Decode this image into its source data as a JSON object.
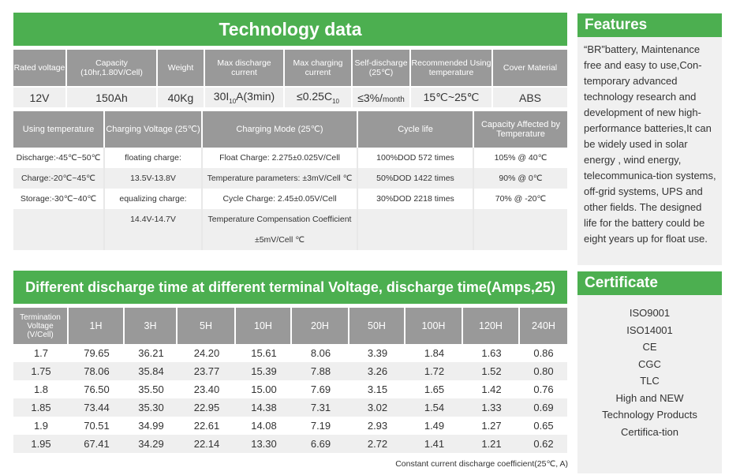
{
  "title": "Technology data",
  "tech": {
    "headers": [
      "Rated voltage",
      "Capacity (10hr,1.80V/Cell)",
      "Weight",
      "Max discharge current",
      "Max charging current",
      "Self-discharge (25℃)",
      "Recommended Using temperature",
      "Cover Material"
    ],
    "values": {
      "voltage": "12V",
      "capacity": "150Ah",
      "weight": "40Kg",
      "max_discharge_pre": "30I",
      "max_discharge_sub": "10",
      "max_discharge_post": "A(3min)",
      "max_charge_pre": "≤0.25C",
      "max_charge_sub": "10",
      "self_discharge_pre": "≤3%/",
      "self_discharge_unit": "month",
      "temperature": "15℃~25℃",
      "cover": "ABS"
    }
  },
  "mode": {
    "headers": [
      "Using temperature",
      "Charging Voltage (25℃)",
      "Charging Mode (25℃)",
      "Cycle life",
      "Capacity Affected by Temperature"
    ],
    "rows": [
      [
        "Discharge:-45℃~50℃",
        "floating charge:",
        "Float Charge: 2.275±0.025V/Cell",
        "100%DOD 572 times",
        "105% @ 40℃"
      ],
      [
        "Charge:-20℃~45℃",
        "13.5V-13.8V",
        "Temperature parameters: ±3mV/Cell ℃",
        "50%DOD 1422 times",
        "90% @ 0℃"
      ],
      [
        "Storage:-30℃~40℃",
        "equalizing charge:",
        "Cycle Charge: 2.45±0.05V/Cell",
        "30%DOD 2218 times",
        "70% @ -20℃"
      ],
      [
        "",
        "14.4V-14.7V",
        "Temperature Compensation Coefficient",
        "",
        ""
      ],
      [
        "",
        "",
        "±5mV/Cell ℃",
        "",
        ""
      ]
    ]
  },
  "discharge": {
    "title": "Different discharge time at different terminal Voltage, discharge time(Amps,25)",
    "headers": [
      "Termination Voltage (V/Cell)",
      "1H",
      "3H",
      "5H",
      "10H",
      "20H",
      "50H",
      "100H",
      "120H",
      "240H"
    ],
    "rows": [
      [
        "1.7",
        "79.65",
        "36.21",
        "24.20",
        "15.61",
        "8.06",
        "3.39",
        "1.84",
        "1.63",
        "0.86"
      ],
      [
        "1.75",
        "78.06",
        "35.84",
        "23.77",
        "15.39",
        "7.88",
        "3.26",
        "1.72",
        "1.52",
        "0.80"
      ],
      [
        "1.8",
        "76.50",
        "35.50",
        "23.40",
        "15.00",
        "7.69",
        "3.15",
        "1.65",
        "1.42",
        "0.76"
      ],
      [
        "1.85",
        "73.44",
        "35.30",
        "22.95",
        "14.38",
        "7.31",
        "3.02",
        "1.54",
        "1.33",
        "0.69"
      ],
      [
        "1.9",
        "70.51",
        "34.99",
        "22.61",
        "14.08",
        "7.19",
        "2.93",
        "1.49",
        "1.27",
        "0.65"
      ],
      [
        "1.95",
        "67.41",
        "34.29",
        "22.14",
        "13.30",
        "6.69",
        "2.72",
        "1.41",
        "1.21",
        "0.62"
      ]
    ],
    "footnote": "Constant current discharge coefficient(25℃, A)"
  },
  "features": {
    "title": "Features",
    "text": "“BR”battery, Maintenance free and easy to use,Con-temporary advanced technology research and development of new high-performance batteries,It can be widely used in solar energy , wind energy, telecommunica-tion systems, off-grid systems, UPS and other fields. The designed life for the battery could be eight years up for float use."
  },
  "certificate": {
    "title": "Certificate",
    "items": [
      "ISO9001",
      "ISO14001",
      "CE",
      "CGC",
      "TLC",
      "High and NEW Technology Products Certifica-tion"
    ]
  },
  "colors": {
    "green": "#4caf50",
    "header_gray": "#999999",
    "row_gray": "#efefef"
  }
}
